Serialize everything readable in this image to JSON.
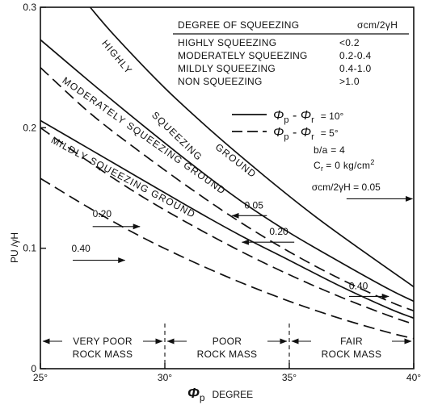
{
  "chart_data": {
    "type": "line",
    "title": "",
    "xlabel": {
      "symbol": "Φ",
      "subscript": "p",
      "word": "DEGREE"
    },
    "ylabel": "PU /γH",
    "xlim": [
      25,
      40
    ],
    "ylim": [
      0,
      0.3
    ],
    "x_ticks": [
      {
        "value": 25,
        "label": "25°"
      },
      {
        "value": 30,
        "label": "30°"
      },
      {
        "value": 35,
        "label": "35°"
      },
      {
        "value": 40,
        "label": "40°"
      }
    ],
    "y_ticks": [
      {
        "value": 0,
        "label": "0"
      },
      {
        "value": 0.1,
        "label": "0.1"
      },
      {
        "value": 0.2,
        "label": "0.2"
      },
      {
        "value": 0.3,
        "label": "0.3"
      }
    ],
    "legend_table": {
      "header_left": "DEGREE OF SQUEEZING",
      "header_right": "σcm/2γH",
      "rows": [
        {
          "label": "HIGHLY SQUEEZING",
          "value": "<0.2"
        },
        {
          "label": "MODERATELY SQUEEZING",
          "value": "0.2-0.4"
        },
        {
          "label": "MILDLY SQUEEZING",
          "value": "0.4-1.0"
        },
        {
          "label": "NON SQUEEZING",
          "value": ">1.0"
        }
      ]
    },
    "line_legend": [
      {
        "style": "solid",
        "phi": "Φ",
        "p": "p",
        "r": "r",
        "value": "= 10°"
      },
      {
        "style": "dashed",
        "phi": "Φ",
        "p": "p",
        "r": "r",
        "value": "= 5°"
      }
    ],
    "parameters": {
      "ba": "b/a  =  4",
      "cr_prefix": "C",
      "cr_sub": "r",
      "cr_value": "=  0 kg/cm",
      "cr_sup": "2"
    },
    "series": [
      {
        "name": "HIGHLY SQUEEZING",
        "style": "solid",
        "x": [
          27.0,
          28.0,
          30.0,
          32.0,
          34.0,
          36.0,
          38.0,
          40.0
        ],
        "y": [
          0.3,
          0.276,
          0.233,
          0.195,
          0.16,
          0.127,
          0.097,
          0.068
        ]
      },
      {
        "name": "MODERATELY SQUEEZING GROUND",
        "style": "solid",
        "x": [
          25.0,
          27.0,
          29.0,
          31.0,
          33.0,
          35.0,
          37.0,
          39.0,
          40.0
        ],
        "y": [
          0.273,
          0.238,
          0.204,
          0.171,
          0.14,
          0.113,
          0.089,
          0.066,
          0.056
        ]
      },
      {
        "name": "MILDLY SQUEEZING GROUND",
        "style": "solid",
        "x": [
          25.0,
          27.0,
          29.0,
          31.0,
          33.0,
          35.0,
          37.0,
          39.0,
          40.0
        ],
        "y": [
          0.206,
          0.182,
          0.158,
          0.134,
          0.111,
          0.09,
          0.069,
          0.05,
          0.042
        ]
      },
      {
        "name": "0.05",
        "style": "dashed",
        "x": [
          25.0,
          27.0,
          29.0,
          31.0,
          33.0,
          35.0,
          37.0,
          39.0,
          40.0
        ],
        "y": [
          0.25,
          0.212,
          0.18,
          0.15,
          0.122,
          0.097,
          0.075,
          0.056,
          0.048
        ]
      },
      {
        "name": "0.20",
        "style": "dashed",
        "x": [
          25.0,
          27.0,
          29.0,
          31.0,
          33.0,
          35.0,
          37.0,
          39.0,
          40.0
        ],
        "y": [
          0.2,
          0.171,
          0.144,
          0.12,
          0.098,
          0.078,
          0.06,
          0.044,
          0.037
        ]
      },
      {
        "name": "0.40",
        "style": "dashed",
        "x": [
          25.0,
          27.0,
          29.0,
          31.0,
          33.0,
          35.0,
          37.0,
          39.0,
          40.0
        ],
        "y": [
          0.158,
          0.133,
          0.11,
          0.09,
          0.072,
          0.056,
          0.042,
          0.03,
          0.025
        ]
      }
    ],
    "curve_labels": [
      {
        "text": "HIGHLY",
        "x": 27.45,
        "y": 0.27,
        "angle": 50
      },
      {
        "text": "SQUEEZING",
        "x": 29.45,
        "y": 0.21,
        "angle": 44
      },
      {
        "text": "GROUND",
        "x": 32.0,
        "y": 0.183,
        "angle": 38
      },
      {
        "text": "MODERATELY SQUEEZING GROUND",
        "x": 25.85,
        "y": 0.238,
        "angle": 35
      },
      {
        "text": "MILDLY SQUEEZING GROUND",
        "x": 25.4,
        "y": 0.188,
        "angle": 28
      }
    ],
    "value_annotations": [
      {
        "text": "σcm/2γH = 0.05",
        "text_x": 35.9,
        "text_y": 0.148,
        "arrow_from": [
          37.3,
          0.141
        ],
        "arrow_to": [
          39.95,
          0.141
        ]
      },
      {
        "text": "0.05",
        "text_x": 33.2,
        "text_y": 0.133,
        "arrow_from": [
          34.1,
          0.127
        ],
        "arrow_to": [
          32.7,
          0.127
        ]
      },
      {
        "text": "0.20",
        "text_x": 34.2,
        "text_y": 0.111,
        "arrow_from": [
          35.2,
          0.105
        ],
        "arrow_to": [
          33.1,
          0.105
        ]
      },
      {
        "text": "0.20",
        "text_x": 27.1,
        "text_y": 0.126,
        "arrow_from": [
          27.1,
          0.118
        ],
        "arrow_to": [
          29.0,
          0.118
        ]
      },
      {
        "text": "0.40",
        "text_x": 26.25,
        "text_y": 0.097,
        "arrow_from": [
          26.3,
          0.09
        ],
        "arrow_to": [
          28.4,
          0.09
        ]
      },
      {
        "text": "0.40",
        "text_x": 37.4,
        "text_y": 0.066,
        "arrow_from": [
          37.4,
          0.06
        ],
        "arrow_to": [
          39.0,
          0.06
        ]
      }
    ],
    "rock_mass_bands": [
      {
        "line1": "VERY POOR",
        "line2": "ROCK MASS",
        "from": 25,
        "to": 30
      },
      {
        "line1": "POOR",
        "line2": "ROCK MASS",
        "from": 30,
        "to": 35
      },
      {
        "line1": "FAIR",
        "line2": "ROCK MASS",
        "from": 35,
        "to": 40
      }
    ],
    "grid": false,
    "legend_position": "top-right"
  }
}
